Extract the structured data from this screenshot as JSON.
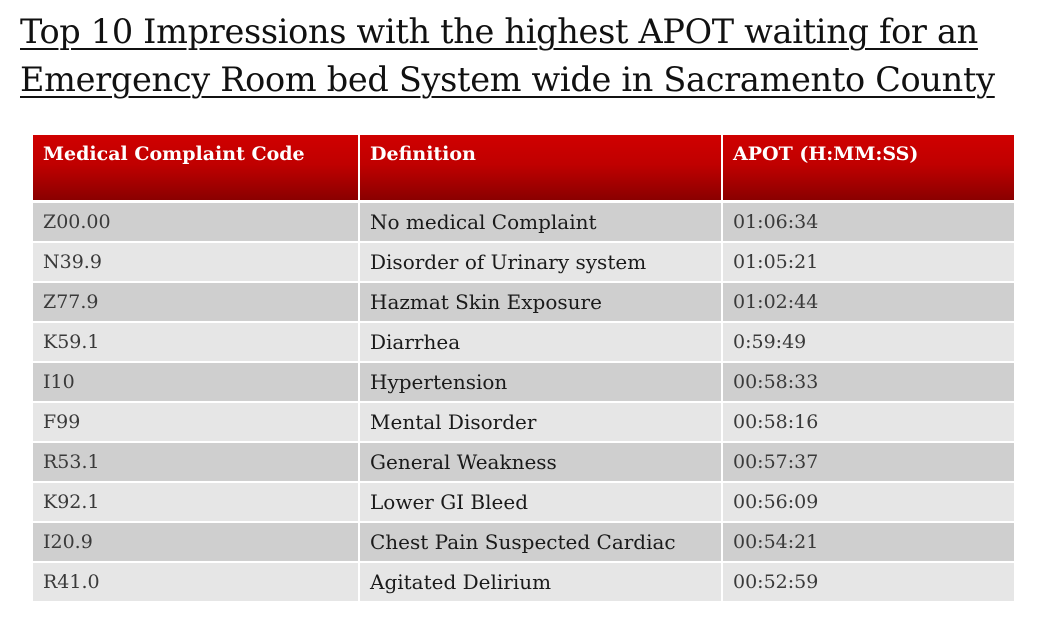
{
  "title": {
    "line1": "Top 10 Impressions with the highest APOT waiting for an",
    "line2": "Emergency Room bed System wide in Sacramento County"
  },
  "table": {
    "headers": [
      "Medical Complaint Code",
      "Definition",
      "APOT  (H:MM:SS)"
    ],
    "rows": [
      {
        "code": "Z00.00",
        "definition": "No medical Complaint",
        "apot": "01:06:34"
      },
      {
        "code": "N39.9",
        "definition": "Disorder of Urinary system",
        "apot": "01:05:21"
      },
      {
        "code": "Z77.9",
        "definition": "Hazmat Skin Exposure",
        "apot": "01:02:44"
      },
      {
        "code": "K59.1",
        "definition": "Diarrhea",
        "apot": "0:59:49"
      },
      {
        "code": "I10",
        "definition": "Hypertension",
        "apot": "00:58:33"
      },
      {
        "code": "F99",
        "definition": "Mental Disorder",
        "apot": "00:58:16"
      },
      {
        "code": "R53.1",
        "definition": "General Weakness",
        "apot": "00:57:37"
      },
      {
        "code": "K92.1",
        "definition": "Lower GI Bleed",
        "apot": "00:56:09"
      },
      {
        "code": "I20.9",
        "definition": "Chest Pain Suspected Cardiac",
        "apot": "00:54:21"
      },
      {
        "code": "R41.0",
        "definition": "Agitated Delirium",
        "apot": "00:52:59"
      }
    ]
  },
  "colors": {
    "header_red": "#c00000",
    "row_dark": "#cfcfcf",
    "row_light": "#e6e6e6"
  }
}
